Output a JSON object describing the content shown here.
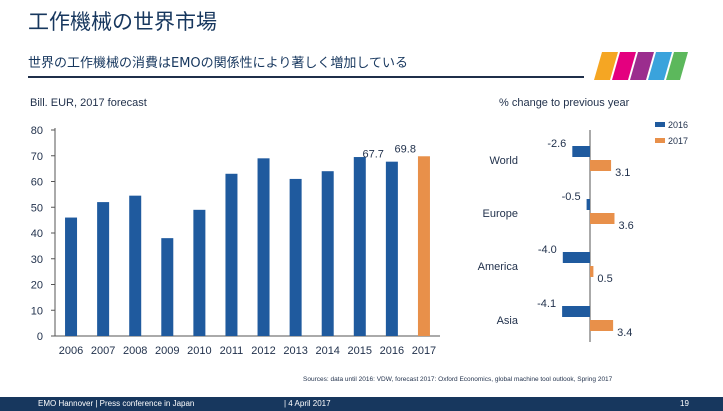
{
  "header": {
    "title": "工作機械の世界市場",
    "subtitle": "世界の工作機械の消費はEMOの関係性により著しく増加している"
  },
  "left_chart_unit": "Bill. EUR, 2017 forecast",
  "right_chart_unit": "% change to previous year",
  "colors": {
    "bar_primary": "#1f5a9e",
    "bar_highlight": "#e8904a",
    "axis": "#555555",
    "text": "#1f2f4a",
    "footer_bg": "#17375e",
    "logo": [
      "#f5a623",
      "#e4007f",
      "#9b2d8e",
      "#3aa3dc",
      "#5cb85c"
    ]
  },
  "chart_data": [
    {
      "type": "bar",
      "title": "",
      "ylabel": "Bill. EUR, 2017 forecast",
      "ylim": [
        0,
        80
      ],
      "yticks": [
        0,
        10,
        20,
        30,
        40,
        50,
        60,
        70,
        80
      ],
      "categories": [
        "2006",
        "2007",
        "2008",
        "2009",
        "2010",
        "2011",
        "2012",
        "2013",
        "2014",
        "2015",
        "2016",
        "2017"
      ],
      "values": [
        46,
        52,
        54.5,
        38,
        49,
        63,
        69,
        61,
        64,
        69.5,
        67.7,
        69.8
      ],
      "highlight": [
        "2017"
      ],
      "data_labels": [
        {
          "category": "2016",
          "text": "67.7"
        },
        {
          "category": "2017",
          "text": "69.8"
        }
      ],
      "grid": false
    },
    {
      "type": "bar",
      "orientation": "horizontal",
      "xlabel": "% change to previous year",
      "categories": [
        "World",
        "Europe",
        "America",
        "Asia"
      ],
      "series": [
        {
          "name": "2016",
          "values": [
            -2.6,
            -0.5,
            -4.0,
            -4.1
          ],
          "labels": [
            "-2.6",
            "-0.5",
            "-4.0",
            "-4.1"
          ]
        },
        {
          "name": "2017",
          "values": [
            3.1,
            3.6,
            0.5,
            3.4
          ],
          "labels": [
            "3.1",
            "3.6",
            "0.5",
            "3.4"
          ]
        }
      ],
      "legend": "top-right",
      "grid": false
    }
  ],
  "source_note": "Sources: data until 2016: VDW, forecast 2017: Oxford Economics, global machine tool outlook, Spring 2017",
  "footer": {
    "left": "EMO Hannover | Press conference in Japan",
    "date": "| 4 April 2017",
    "page": "19"
  }
}
